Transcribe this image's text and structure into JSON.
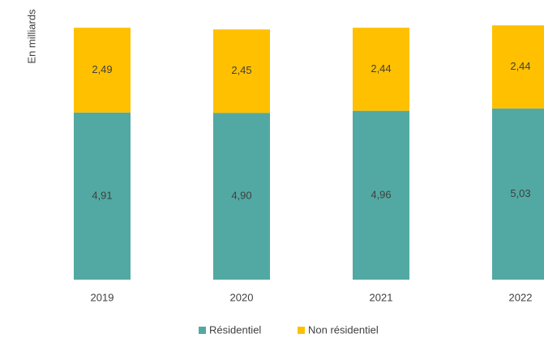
{
  "chart_data": {
    "type": "stacked_bar",
    "y_label": "En milliards",
    "categories": [
      "2019",
      "2020",
      "2021",
      "2022"
    ],
    "series": [
      {
        "name": "Résidentiel",
        "color": "#52a9a3",
        "values": [
          4.91,
          4.9,
          4.96,
          5.03
        ],
        "value_labels": [
          "4,91",
          "4,90",
          "4,96",
          "5,03"
        ]
      },
      {
        "name": "Non résidentiel",
        "color": "#ffc000",
        "values": [
          2.49,
          2.45,
          2.44,
          2.44
        ],
        "value_labels": [
          "2,49",
          "2,45",
          "2,44",
          "2,44"
        ]
      }
    ],
    "legend": "bottom"
  }
}
